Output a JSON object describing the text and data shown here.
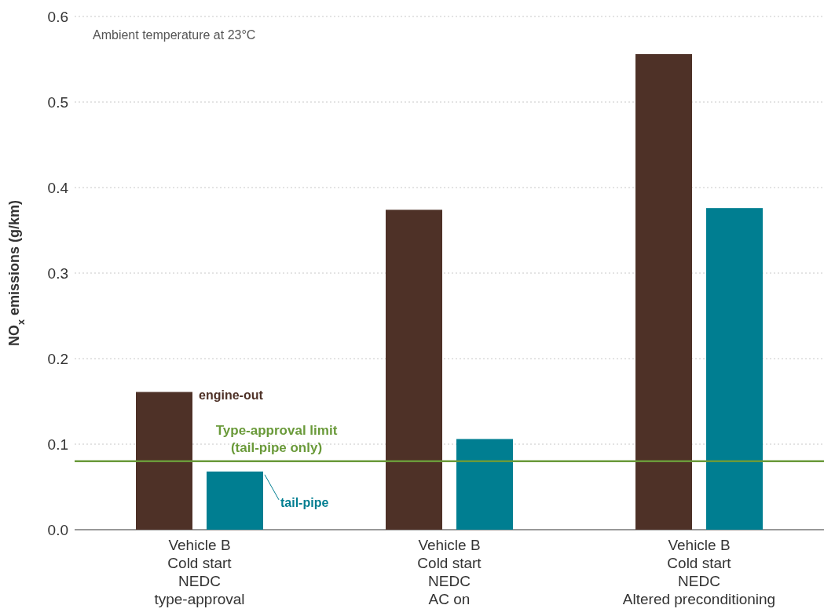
{
  "chart_data": {
    "type": "bar",
    "ylabel": "NO$_{x}$ emissions (g/km)",
    "categories": [
      "Vehicle B\nCold start\nNEDC\ntype-approval",
      "Vehicle B\nCold start\nNEDC\nAC on",
      "Vehicle B\nCold start\nNEDC\nAltered preconditioning"
    ],
    "series": [
      {
        "name": "engine-out",
        "color": "#4e3127",
        "values": [
          0.161,
          0.374,
          0.556
        ]
      },
      {
        "name": "tail-pipe",
        "color": "#007e91",
        "values": [
          0.068,
          0.106,
          0.376
        ]
      }
    ],
    "ylim": [
      0,
      0.6
    ],
    "yticks": [
      {
        "value": 0,
        "label": "0.0"
      },
      0.1,
      0.2,
      0.3,
      0.4,
      0.5,
      0.6
    ],
    "grid": "y",
    "ref_lines": [
      {
        "axis": "y",
        "value": 0.08,
        "label": "Type-approval limit\n(tail-pipe only)",
        "color": "#6a9a3a",
        "line_style": "solid"
      }
    ],
    "annotations": [
      "Ambient temperature at 23°C"
    ]
  }
}
